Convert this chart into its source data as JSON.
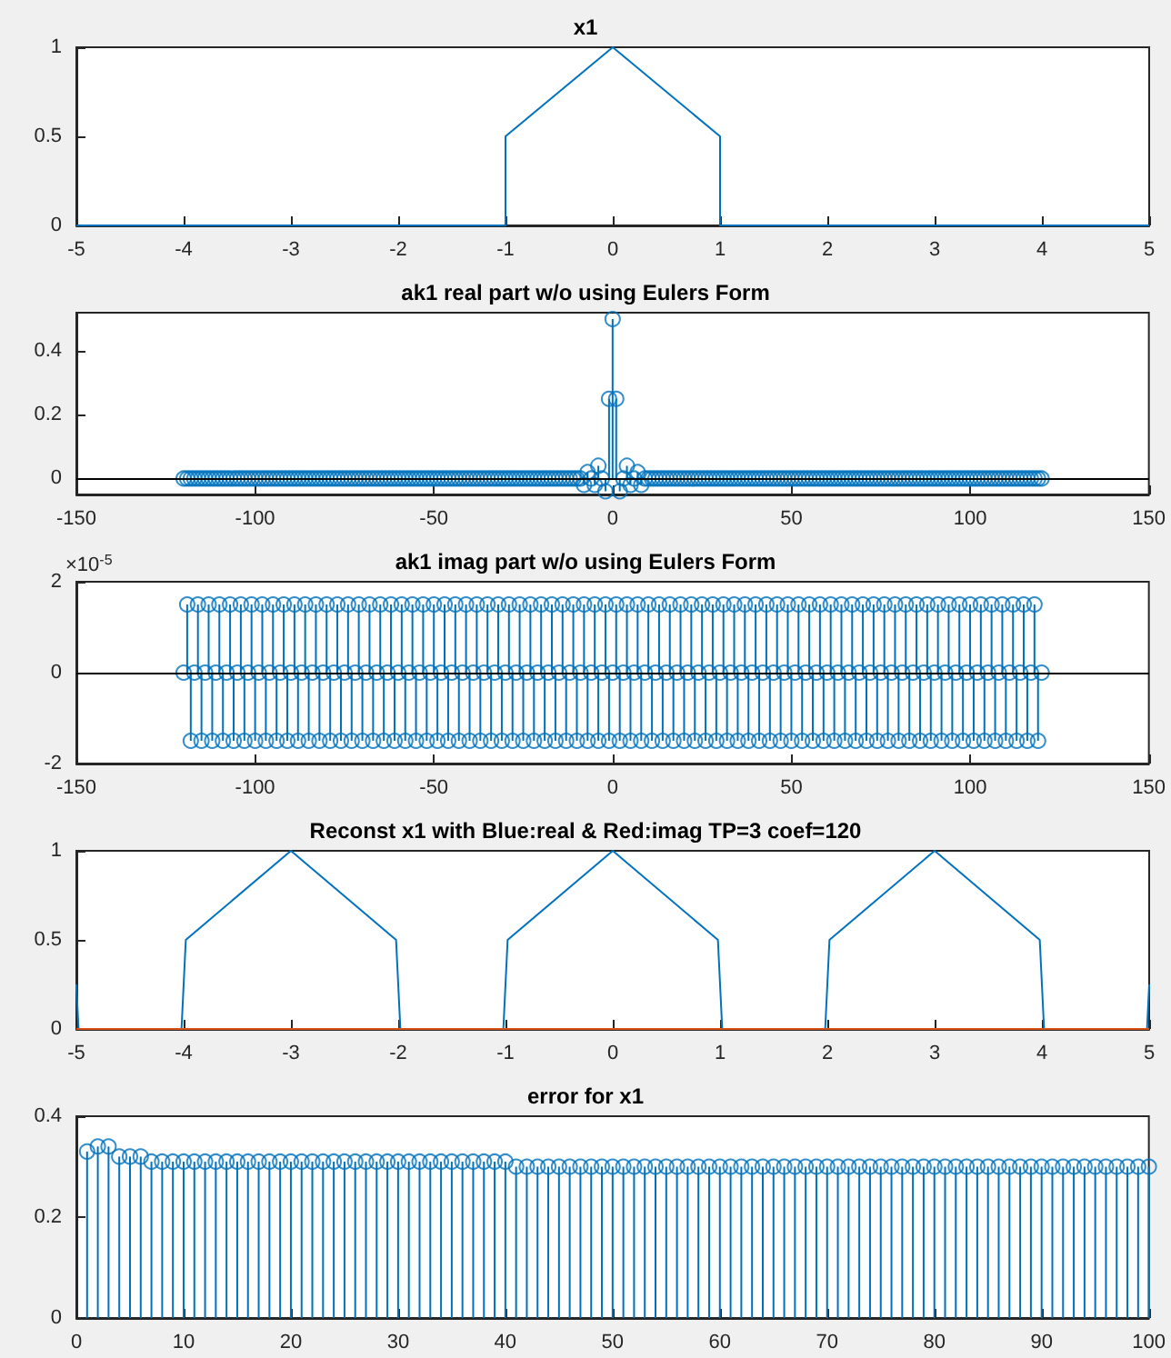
{
  "chart_data": [
    {
      "type": "line",
      "title": "x1",
      "xlim": [
        -5,
        5
      ],
      "xticks": [
        -5,
        -4,
        -3,
        -2,
        -1,
        0,
        1,
        2,
        3,
        4,
        5
      ],
      "ylim": [
        0,
        1
      ],
      "yticks": [
        0,
        0.5,
        1
      ],
      "marker": "none",
      "line_style": "solid",
      "series": [
        {
          "color": "#0072bd",
          "x": [
            -5,
            -1,
            -1,
            0,
            1,
            1,
            5
          ],
          "values": [
            0,
            0,
            0.5,
            1,
            0.5,
            0,
            0
          ]
        }
      ]
    },
    {
      "type": "lollipop",
      "title": "ak1 real part w/o using Eulers Form",
      "xlim": [
        -150,
        150
      ],
      "xticks": [
        -150,
        -100,
        -50,
        0,
        50,
        100,
        150
      ],
      "ylim": [
        -0.05,
        0.52
      ],
      "yticks": [
        0,
        0.2,
        0.4
      ],
      "marker": "circle",
      "ref_lines": [
        {
          "axis": "y",
          "value": 0,
          "color": "#000000"
        }
      ],
      "x": [
        -120,
        -119,
        -118,
        -117,
        -116,
        -115,
        -114,
        -113,
        -112,
        -111,
        -110,
        -109,
        -108,
        -107,
        -106,
        -105,
        -104,
        -103,
        -102,
        -101,
        -100,
        -99,
        -98,
        -97,
        -96,
        -95,
        -94,
        -93,
        -92,
        -91,
        -90,
        -89,
        -88,
        -87,
        -86,
        -85,
        -84,
        -83,
        -82,
        -81,
        -80,
        -79,
        -78,
        -77,
        -76,
        -75,
        -74,
        -73,
        -72,
        -71,
        -70,
        -69,
        -68,
        -67,
        -66,
        -65,
        -64,
        -63,
        -62,
        -61,
        -60,
        -59,
        -58,
        -57,
        -56,
        -55,
        -54,
        -53,
        -52,
        -51,
        -50,
        -49,
        -48,
        -47,
        -46,
        -45,
        -44,
        -43,
        -42,
        -41,
        -40,
        -39,
        -38,
        -37,
        -36,
        -35,
        -34,
        -33,
        -32,
        -31,
        -30,
        -29,
        -28,
        -27,
        -26,
        -25,
        -24,
        -23,
        -22,
        -21,
        -20,
        -19,
        -18,
        -17,
        -16,
        -15,
        -14,
        -13,
        -12,
        -11,
        -10,
        -9,
        -8,
        -7,
        -6,
        -5,
        -4,
        -3,
        -2,
        -1,
        0,
        1,
        2,
        3,
        4,
        5,
        6,
        7,
        8,
        9,
        10,
        11,
        12,
        13,
        14,
        15,
        16,
        17,
        18,
        19,
        20,
        21,
        22,
        23,
        24,
        25,
        26,
        27,
        28,
        29,
        30,
        31,
        32,
        33,
        34,
        35,
        36,
        37,
        38,
        39,
        40,
        41,
        42,
        43,
        44,
        45,
        46,
        47,
        48,
        49,
        50,
        51,
        52,
        53,
        54,
        55,
        56,
        57,
        58,
        59,
        60,
        61,
        62,
        63,
        64,
        65,
        66,
        67,
        68,
        69,
        70,
        71,
        72,
        73,
        74,
        75,
        76,
        77,
        78,
        79,
        80,
        81,
        82,
        83,
        84,
        85,
        86,
        87,
        88,
        89,
        90,
        91,
        92,
        93,
        94,
        95,
        96,
        97,
        98,
        99,
        100,
        101,
        102,
        103,
        104,
        105,
        106,
        107,
        108,
        109,
        110,
        111,
        112,
        113,
        114,
        115,
        116,
        117,
        118,
        119,
        120
      ],
      "series": [
        {
          "color": "#0072bd",
          "values": [
            0,
            0,
            0,
            0,
            0,
            0,
            0,
            0,
            0,
            0,
            0,
            0,
            0,
            0,
            0,
            0,
            0,
            0,
            0,
            0,
            0,
            0,
            0,
            0,
            0,
            0,
            0,
            0,
            0,
            0,
            0,
            0,
            0,
            0,
            0,
            0,
            0,
            0,
            0,
            0,
            0,
            0,
            0,
            0,
            0,
            0,
            0,
            0,
            0,
            0,
            0,
            0,
            0,
            0,
            0,
            0,
            0,
            0,
            0,
            0,
            0,
            0,
            0,
            0,
            0,
            0,
            0,
            0,
            0,
            0,
            0,
            0,
            0,
            0,
            0,
            0,
            0,
            0,
            0,
            0,
            0,
            0,
            0,
            0,
            0,
            0,
            0,
            0,
            0,
            0,
            0,
            0,
            0,
            0,
            0,
            0,
            0,
            0,
            0,
            0,
            0,
            0,
            0,
            0,
            0,
            0,
            0,
            0,
            0,
            0,
            0,
            0,
            -0.02,
            0.02,
            0,
            -0.02,
            0.04,
            0,
            -0.04,
            0.25,
            0.5,
            0.25,
            -0.04,
            0,
            0.04,
            -0.02,
            0,
            0.02,
            -0.02,
            0,
            0,
            0,
            0,
            0,
            0,
            0,
            0,
            0,
            0,
            0,
            0,
            0,
            0,
            0,
            0,
            0,
            0,
            0,
            0,
            0,
            0,
            0,
            0,
            0,
            0,
            0,
            0,
            0,
            0,
            0,
            0,
            0,
            0,
            0,
            0,
            0,
            0,
            0,
            0,
            0,
            0,
            0,
            0,
            0,
            0,
            0,
            0,
            0,
            0,
            0,
            0,
            0,
            0,
            0,
            0,
            0,
            0,
            0,
            0,
            0,
            0,
            0,
            0,
            0,
            0,
            0,
            0,
            0,
            0,
            0,
            0,
            0,
            0,
            0,
            0,
            0,
            0,
            0,
            0,
            0,
            0,
            0,
            0,
            0,
            0,
            0,
            0,
            0,
            0,
            0,
            0,
            0,
            0,
            0,
            0,
            0,
            0,
            0,
            0,
            0,
            0,
            0,
            0,
            0,
            0,
            0,
            0,
            0,
            0,
            0,
            0
          ]
        }
      ]
    },
    {
      "type": "lollipop",
      "title": "ak1 imag part w/o using Eulers Form",
      "xlim": [
        -150,
        150
      ],
      "xticks": [
        -150,
        -100,
        -50,
        0,
        50,
        100,
        150
      ],
      "ylim": [
        -2,
        2
      ],
      "yticks": [
        -2,
        0,
        2
      ],
      "marker": "circle",
      "annotations": [
        "×10$^{-5}$"
      ],
      "ref_lines": [
        {
          "axis": "y",
          "value": 0,
          "color": "#000000"
        }
      ],
      "x": [
        -120,
        -119,
        -118,
        -117,
        -116,
        -115,
        -114,
        -113,
        -112,
        -111,
        -110,
        -109,
        -108,
        -107,
        -106,
        -105,
        -104,
        -103,
        -102,
        -101,
        -100,
        -99,
        -98,
        -97,
        -96,
        -95,
        -94,
        -93,
        -92,
        -91,
        -90,
        -89,
        -88,
        -87,
        -86,
        -85,
        -84,
        -83,
        -82,
        -81,
        -80,
        -79,
        -78,
        -77,
        -76,
        -75,
        -74,
        -73,
        -72,
        -71,
        -70,
        -69,
        -68,
        -67,
        -66,
        -65,
        -64,
        -63,
        -62,
        -61,
        -60,
        -59,
        -58,
        -57,
        -56,
        -55,
        -54,
        -53,
        -52,
        -51,
        -50,
        -49,
        -48,
        -47,
        -46,
        -45,
        -44,
        -43,
        -42,
        -41,
        -40,
        -39,
        -38,
        -37,
        -36,
        -35,
        -34,
        -33,
        -32,
        -31,
        -30,
        -29,
        -28,
        -27,
        -26,
        -25,
        -24,
        -23,
        -22,
        -21,
        -20,
        -19,
        -18,
        -17,
        -16,
        -15,
        -14,
        -13,
        -12,
        -11,
        -10,
        -9,
        -8,
        -7,
        -6,
        -5,
        -4,
        -3,
        -2,
        -1,
        0,
        1,
        2,
        3,
        4,
        5,
        6,
        7,
        8,
        9,
        10,
        11,
        12,
        13,
        14,
        15,
        16,
        17,
        18,
        19,
        20,
        21,
        22,
        23,
        24,
        25,
        26,
        27,
        28,
        29,
        30,
        31,
        32,
        33,
        34,
        35,
        36,
        37,
        38,
        39,
        40,
        41,
        42,
        43,
        44,
        45,
        46,
        47,
        48,
        49,
        50,
        51,
        52,
        53,
        54,
        55,
        56,
        57,
        58,
        59,
        60,
        61,
        62,
        63,
        64,
        65,
        66,
        67,
        68,
        69,
        70,
        71,
        72,
        73,
        74,
        75,
        76,
        77,
        78,
        79,
        80,
        81,
        82,
        83,
        84,
        85,
        86,
        87,
        88,
        89,
        90,
        91,
        92,
        93,
        94,
        95,
        96,
        97,
        98,
        99,
        100,
        101,
        102,
        103,
        104,
        105,
        106,
        107,
        108,
        109,
        110,
        111,
        112,
        113,
        114,
        115,
        116,
        117,
        118,
        119,
        120
      ],
      "series": [
        {
          "color": "#0072bd",
          "values": [
            0,
            1.5,
            -1.5,
            0,
            1.5,
            -1.5,
            0,
            1.5,
            -1.5,
            0,
            1.5,
            -1.5,
            0,
            1.5,
            -1.5,
            0,
            1.5,
            -1.5,
            0,
            1.5,
            -1.5,
            0,
            1.5,
            -1.5,
            0,
            1.5,
            -1.5,
            0,
            1.5,
            -1.5,
            0,
            1.5,
            -1.5,
            0,
            1.5,
            -1.5,
            0,
            1.5,
            -1.5,
            0,
            1.5,
            -1.5,
            0,
            1.5,
            -1.5,
            0,
            1.5,
            -1.5,
            0,
            1.5,
            -1.5,
            0,
            1.5,
            -1.5,
            0,
            1.5,
            -1.5,
            0,
            1.5,
            -1.5,
            0,
            1.5,
            -1.5,
            0,
            1.5,
            -1.5,
            0,
            1.5,
            -1.5,
            0,
            1.5,
            -1.5,
            0,
            1.5,
            -1.5,
            0,
            1.5,
            -1.5,
            0,
            1.5,
            -1.5,
            0,
            1.5,
            -1.5,
            0,
            1.5,
            -1.5,
            0,
            1.5,
            -1.5,
            0,
            1.5,
            -1.5,
            0,
            1.5,
            -1.5,
            0,
            1.5,
            -1.5,
            0,
            1.5,
            -1.5,
            0,
            1.5,
            -1.5,
            0,
            1.5,
            -1.5,
            0,
            1.5,
            -1.5,
            0,
            1.5,
            -1.5,
            0,
            1.5,
            -1.5,
            0,
            1.5,
            -1.5,
            0,
            1.5,
            -1.5,
            0,
            1.5,
            -1.5,
            0,
            1.5,
            -1.5,
            0,
            1.5,
            -1.5,
            0,
            1.5,
            -1.5,
            0,
            1.5,
            -1.5,
            0,
            1.5,
            -1.5,
            0,
            1.5,
            -1.5,
            0,
            1.5,
            -1.5,
            0,
            1.5,
            -1.5,
            0,
            1.5,
            -1.5,
            0,
            1.5,
            -1.5,
            0,
            1.5,
            -1.5,
            0,
            1.5,
            -1.5,
            0,
            1.5,
            -1.5,
            0,
            1.5,
            -1.5,
            0,
            1.5,
            -1.5,
            0,
            1.5,
            -1.5,
            0,
            1.5,
            -1.5,
            0,
            1.5,
            -1.5,
            0,
            1.5,
            -1.5,
            0,
            1.5,
            -1.5,
            0,
            1.5,
            -1.5,
            0,
            1.5,
            -1.5,
            0,
            1.5,
            -1.5,
            0,
            1.5,
            -1.5,
            0,
            1.5,
            -1.5,
            0,
            1.5,
            -1.5,
            0,
            1.5,
            -1.5,
            0,
            1.5,
            -1.5,
            0,
            1.5,
            -1.5,
            0,
            1.5,
            -1.5,
            0,
            1.5,
            -1.5,
            0,
            1.5,
            -1.5,
            0,
            1.5,
            -1.5,
            0,
            1.5,
            -1.5,
            0,
            1.5,
            -1.5,
            0,
            1.5,
            -1.5,
            0,
            1.5,
            -1.5,
            0,
            1.5,
            -1.5,
            0
          ]
        }
      ]
    },
    {
      "type": "line",
      "title": "Reconst x1 with Blue:real & Red:imag TP=3 coef=120",
      "xlim": [
        -5,
        5
      ],
      "xticks": [
        -5,
        -4,
        -3,
        -2,
        -1,
        0,
        1,
        2,
        3,
        4,
        5
      ],
      "ylim": [
        0,
        1
      ],
      "yticks": [
        0,
        0.5,
        1
      ],
      "marker": "none",
      "line_style": "solid",
      "series": [
        {
          "color": "#0072bd",
          "x": [
            -5,
            -4.98,
            -4.02,
            -4,
            -3.98,
            -3,
            -2.02,
            -2,
            -1.98,
            -1.02,
            -1,
            -0.98,
            0,
            0.98,
            1,
            1.02,
            1.98,
            2,
            2.02,
            3,
            3.98,
            4,
            4.02,
            4.98,
            5
          ],
          "values": [
            0.25,
            0,
            0,
            0.25,
            0.5,
            1,
            0.5,
            0.25,
            0,
            0,
            0.25,
            0.5,
            1,
            0.5,
            0.25,
            0,
            0,
            0.25,
            0.5,
            1,
            0.5,
            0.25,
            0,
            0,
            0.25
          ]
        },
        {
          "color": "#d95319",
          "x": [
            -5,
            5
          ],
          "values": [
            0,
            0
          ]
        }
      ]
    },
    {
      "type": "lollipop",
      "title": "error for x1",
      "xlim": [
        0,
        100
      ],
      "xticks": [
        0,
        10,
        20,
        30,
        40,
        50,
        60,
        70,
        80,
        90,
        100
      ],
      "ylim": [
        0,
        0.4
      ],
      "yticks": [
        0,
        0.2,
        0.4
      ],
      "marker": "circle",
      "x": [
        1,
        2,
        3,
        4,
        5,
        6,
        7,
        8,
        9,
        10,
        11,
        12,
        13,
        14,
        15,
        16,
        17,
        18,
        19,
        20,
        21,
        22,
        23,
        24,
        25,
        26,
        27,
        28,
        29,
        30,
        31,
        32,
        33,
        34,
        35,
        36,
        37,
        38,
        39,
        40,
        41,
        42,
        43,
        44,
        45,
        46,
        47,
        48,
        49,
        50,
        51,
        52,
        53,
        54,
        55,
        56,
        57,
        58,
        59,
        60,
        61,
        62,
        63,
        64,
        65,
        66,
        67,
        68,
        69,
        70,
        71,
        72,
        73,
        74,
        75,
        76,
        77,
        78,
        79,
        80,
        81,
        82,
        83,
        84,
        85,
        86,
        87,
        88,
        89,
        90,
        91,
        92,
        93,
        94,
        95,
        96,
        97,
        98,
        99,
        100
      ],
      "series": [
        {
          "color": "#0072bd",
          "values": [
            0.33,
            0.34,
            0.34,
            0.32,
            0.32,
            0.32,
            0.31,
            0.31,
            0.31,
            0.31,
            0.31,
            0.31,
            0.31,
            0.31,
            0.31,
            0.31,
            0.31,
            0.31,
            0.31,
            0.31,
            0.31,
            0.31,
            0.31,
            0.31,
            0.31,
            0.31,
            0.31,
            0.31,
            0.31,
            0.31,
            0.31,
            0.31,
            0.31,
            0.31,
            0.31,
            0.31,
            0.31,
            0.31,
            0.31,
            0.31,
            0.3,
            0.3,
            0.3,
            0.3,
            0.3,
            0.3,
            0.3,
            0.3,
            0.3,
            0.3,
            0.3,
            0.3,
            0.3,
            0.3,
            0.3,
            0.3,
            0.3,
            0.3,
            0.3,
            0.3,
            0.3,
            0.3,
            0.3,
            0.3,
            0.3,
            0.3,
            0.3,
            0.3,
            0.3,
            0.3,
            0.3,
            0.3,
            0.3,
            0.3,
            0.3,
            0.3,
            0.3,
            0.3,
            0.3,
            0.3,
            0.3,
            0.3,
            0.3,
            0.3,
            0.3,
            0.3,
            0.3,
            0.3,
            0.3,
            0.3,
            0.3,
            0.3,
            0.3,
            0.3,
            0.3,
            0.3,
            0.3,
            0.3,
            0.3,
            0.3
          ]
        }
      ]
    }
  ]
}
